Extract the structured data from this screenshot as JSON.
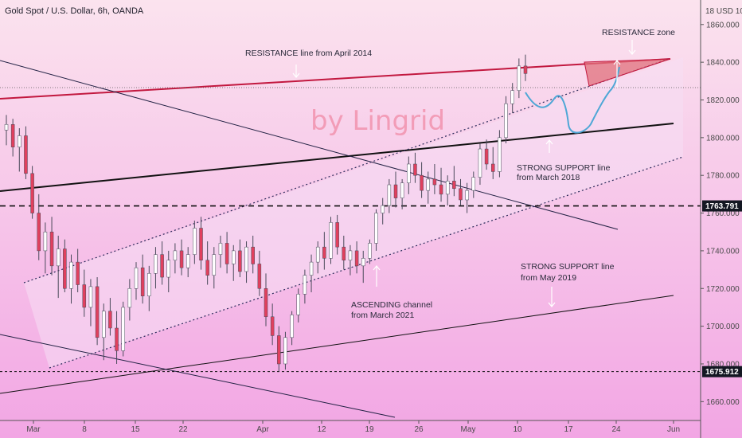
{
  "header": {
    "title": "Gold Spot / U.S. Dollar, 6h, OANDA"
  },
  "watermark": "by Lingrid",
  "currency_label": "18 USD 10",
  "colors": {
    "bg_top": "#fbe3ee",
    "bg_bottom": "#f2a6e4",
    "bull": "#ffffff",
    "bear": "#e0405e",
    "wick": "#4a4a5a",
    "resistance": "#c2183f",
    "support": "#111111",
    "channel_fill": "#f6dff4",
    "zone_fill": "#e0707c",
    "projection": "#4ea7d6",
    "arrow": "#ffffff"
  },
  "chart_data": {
    "type": "candlestick",
    "title": "Gold Spot / U.S. Dollar, 6h, OANDA",
    "ylim": [
      1650,
      1873
    ],
    "yticks": [
      "1660.000",
      "1680.000",
      "1700.000",
      "1720.000",
      "1740.000",
      "1760.000",
      "1780.000",
      "1800.000",
      "1820.000",
      "1840.000",
      "1860.000"
    ],
    "xticks": [
      "Mar",
      "8",
      "15",
      "22",
      "Apr",
      "12",
      "19",
      "26",
      "May",
      "10",
      "17",
      "24",
      "Jun"
    ],
    "price_labels": [
      {
        "value": 1763.791,
        "text": "1763.791"
      },
      {
        "value": 1675.912,
        "text": "1675.912"
      }
    ],
    "annotations": [
      {
        "text": "RESISTANCE line from April 2014"
      },
      {
        "text": "RESISTANCE zone"
      },
      {
        "text": "STRONG SUPPORT line"
      },
      {
        "text": "from March 2018"
      },
      {
        "text": "STRONG SUPPORT line"
      },
      {
        "text": "from May 2019"
      },
      {
        "text": "ASCENDING channel"
      },
      {
        "text": "from March 2021"
      }
    ],
    "ohlc": [
      [
        1804,
        1812,
        1796,
        1807
      ],
      [
        1807,
        1810,
        1790,
        1795
      ],
      [
        1795,
        1805,
        1782,
        1801
      ],
      [
        1801,
        1806,
        1778,
        1781
      ],
      [
        1781,
        1785,
        1757,
        1760
      ],
      [
        1760,
        1770,
        1735,
        1740
      ],
      [
        1740,
        1755,
        1728,
        1750
      ],
      [
        1750,
        1758,
        1727,
        1732
      ],
      [
        1732,
        1748,
        1715,
        1741
      ],
      [
        1741,
        1746,
        1718,
        1720
      ],
      [
        1720,
        1738,
        1712,
        1734
      ],
      [
        1734,
        1741,
        1718,
        1722
      ],
      [
        1722,
        1730,
        1705,
        1710
      ],
      [
        1710,
        1725,
        1700,
        1721
      ],
      [
        1721,
        1726,
        1690,
        1694
      ],
      [
        1694,
        1712,
        1682,
        1708
      ],
      [
        1708,
        1715,
        1695,
        1699
      ],
      [
        1699,
        1708,
        1680,
        1687
      ],
      [
        1687,
        1713,
        1684,
        1710
      ],
      [
        1710,
        1725,
        1703,
        1720
      ],
      [
        1720,
        1734,
        1714,
        1731
      ],
      [
        1731,
        1738,
        1712,
        1716
      ],
      [
        1716,
        1732,
        1708,
        1728
      ],
      [
        1728,
        1742,
        1720,
        1738
      ],
      [
        1738,
        1745,
        1722,
        1726
      ],
      [
        1726,
        1740,
        1718,
        1735
      ],
      [
        1735,
        1744,
        1728,
        1740
      ],
      [
        1740,
        1746,
        1727,
        1731
      ],
      [
        1731,
        1742,
        1726,
        1738
      ],
      [
        1738,
        1756,
        1733,
        1752
      ],
      [
        1752,
        1758,
        1730,
        1735
      ],
      [
        1735,
        1745,
        1722,
        1727
      ],
      [
        1727,
        1742,
        1720,
        1738
      ],
      [
        1738,
        1748,
        1731,
        1744
      ],
      [
        1744,
        1750,
        1728,
        1733
      ],
      [
        1733,
        1743,
        1724,
        1740
      ],
      [
        1740,
        1746,
        1726,
        1729
      ],
      [
        1729,
        1745,
        1723,
        1742
      ],
      [
        1742,
        1748,
        1728,
        1733
      ],
      [
        1733,
        1740,
        1716,
        1720
      ],
      [
        1720,
        1728,
        1700,
        1705
      ],
      [
        1705,
        1712,
        1690,
        1695
      ],
      [
        1695,
        1700,
        1676,
        1680
      ],
      [
        1680,
        1697,
        1677,
        1694
      ],
      [
        1694,
        1708,
        1690,
        1706
      ],
      [
        1706,
        1720,
        1702,
        1717
      ],
      [
        1717,
        1730,
        1712,
        1727
      ],
      [
        1727,
        1738,
        1718,
        1734
      ],
      [
        1734,
        1745,
        1728,
        1742
      ],
      [
        1742,
        1750,
        1730,
        1736
      ],
      [
        1736,
        1758,
        1733,
        1755
      ],
      [
        1755,
        1759,
        1738,
        1742
      ],
      [
        1742,
        1748,
        1730,
        1735
      ],
      [
        1735,
        1743,
        1727,
        1740
      ],
      [
        1740,
        1745,
        1728,
        1732
      ],
      [
        1732,
        1740,
        1723,
        1736
      ],
      [
        1736,
        1746,
        1733,
        1744
      ],
      [
        1744,
        1762,
        1740,
        1760
      ],
      [
        1760,
        1768,
        1754,
        1764
      ],
      [
        1764,
        1778,
        1760,
        1775
      ],
      [
        1775,
        1782,
        1763,
        1768
      ],
      [
        1768,
        1778,
        1762,
        1776
      ],
      [
        1776,
        1790,
        1770,
        1786
      ],
      [
        1786,
        1792,
        1776,
        1780
      ],
      [
        1780,
        1787,
        1768,
        1772
      ],
      [
        1772,
        1782,
        1765,
        1778
      ],
      [
        1778,
        1786,
        1770,
        1775
      ],
      [
        1775,
        1784,
        1766,
        1770
      ],
      [
        1770,
        1780,
        1764,
        1777
      ],
      [
        1777,
        1785,
        1769,
        1773
      ],
      [
        1773,
        1778,
        1764,
        1767
      ],
      [
        1767,
        1776,
        1760,
        1772
      ],
      [
        1772,
        1782,
        1768,
        1779
      ],
      [
        1779,
        1797,
        1775,
        1794
      ],
      [
        1794,
        1799,
        1783,
        1786
      ],
      [
        1786,
        1795,
        1778,
        1782
      ],
      [
        1782,
        1804,
        1779,
        1800
      ],
      [
        1800,
        1822,
        1797,
        1818
      ],
      [
        1818,
        1829,
        1813,
        1825
      ],
      [
        1825,
        1842,
        1821,
        1838
      ],
      [
        1838,
        1844,
        1830,
        1834
      ]
    ]
  }
}
